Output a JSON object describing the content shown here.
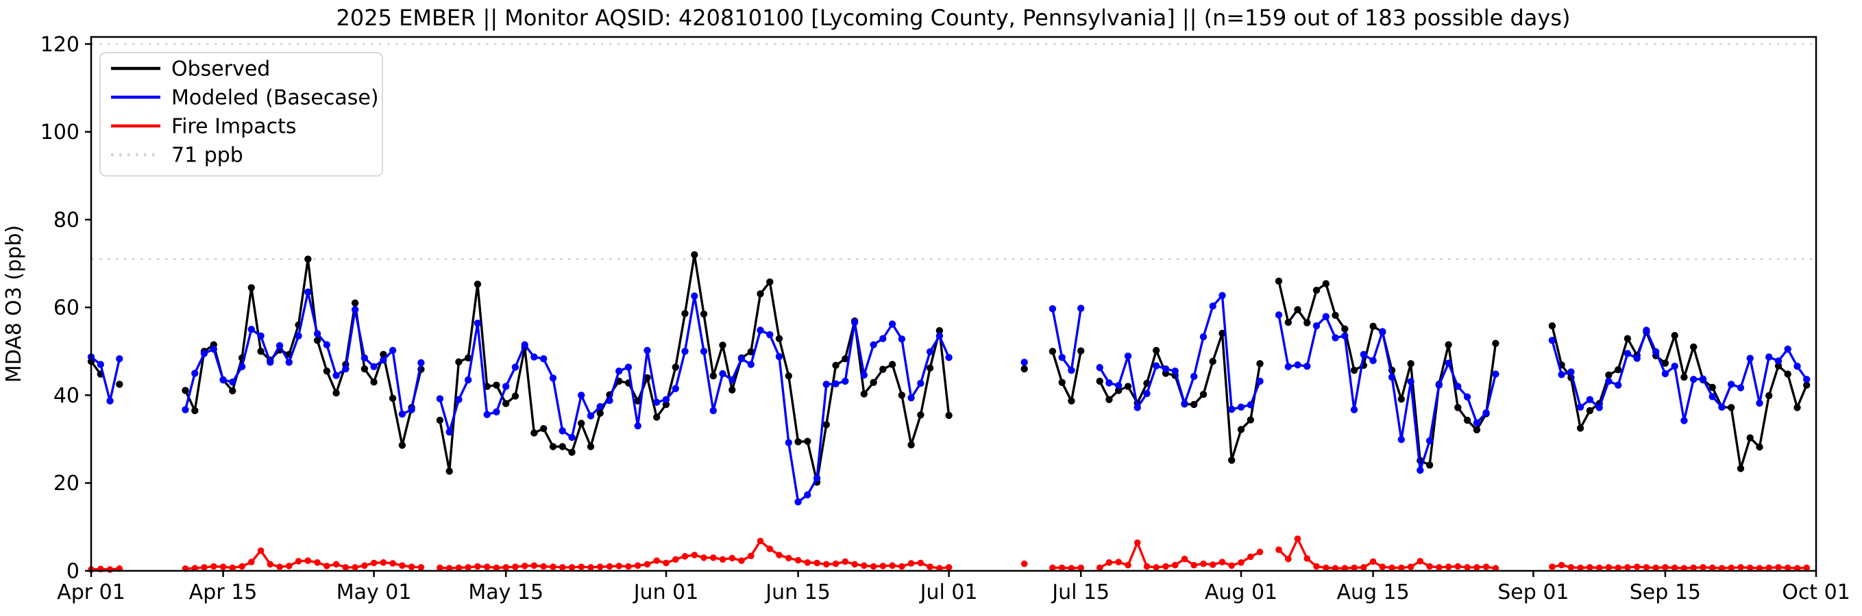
{
  "chart_data": {
    "type": "line",
    "title": "2025 EMBER || Monitor AQSID: 420810100 [Lycoming County, Pennsylvania] || (n=159 out of 183 possible days)",
    "xlabel": "",
    "ylabel": "MDA8 O3 (ppb)",
    "ylim": [
      0,
      120
    ],
    "y_ticks": [
      0,
      20,
      40,
      60,
      80,
      100,
      120
    ],
    "x_days": 183,
    "x_tick_labels": [
      {
        "day": 0,
        "label": "Apr 01"
      },
      {
        "day": 14,
        "label": "Apr 15"
      },
      {
        "day": 30,
        "label": "May 01"
      },
      {
        "day": 44,
        "label": "May 15"
      },
      {
        "day": 61,
        "label": "Jun 01"
      },
      {
        "day": 75,
        "label": "Jun 15"
      },
      {
        "day": 91,
        "label": "Jul 01"
      },
      {
        "day": 105,
        "label": "Jul 15"
      },
      {
        "day": 122,
        "label": "Aug 01"
      },
      {
        "day": 136,
        "label": "Aug 15"
      },
      {
        "day": 153,
        "label": "Sep 01"
      },
      {
        "day": 167,
        "label": "Sep 15"
      },
      {
        "day": 183,
        "label": "Oct 01"
      }
    ],
    "grid": "off",
    "legend_position": "upper left",
    "threshold_lines": [
      {
        "value": 71,
        "label": "71 ppb",
        "color": "#d3d3d3",
        "style": "dotted"
      },
      {
        "value": 120,
        "label": "",
        "color": "#d3d3d3",
        "style": "dotted"
      }
    ],
    "legend": {
      "items": [
        {
          "label": "Observed",
          "color": "#000000",
          "style": "solid"
        },
        {
          "label": "Modeled (Basecase)",
          "color": "#0000ff",
          "style": "solid"
        },
        {
          "label": "Fire Impacts",
          "color": "#ff0000",
          "style": "solid"
        },
        {
          "label": "71 ppb",
          "color": "#d3d3d3",
          "style": "dotted"
        }
      ]
    },
    "series": [
      {
        "id": "observed",
        "name": "Observed",
        "color": "#000000",
        "marker_r": 5.2,
        "values": [
          47.7,
          44.8,
          null,
          42.5,
          null,
          null,
          null,
          null,
          null,
          null,
          41.1,
          36.5,
          50,
          51.5,
          43.5,
          41,
          48.5,
          64.5,
          50,
          48,
          50.3,
          49.3,
          56,
          71,
          52.5,
          45.5,
          40.5,
          47,
          61,
          46,
          43,
          49.3,
          39.3,
          28.6,
          37.2,
          45.9,
          null,
          34.3,
          22.7,
          47.6,
          48.5,
          65.3,
          42,
          42.3,
          38.1,
          39.8,
          50.9,
          31.4,
          32.4,
          28.3,
          28.3,
          27,
          33.6,
          28.3,
          35.9,
          40.1,
          43.2,
          42.8,
          38.7,
          44,
          35,
          37.9,
          46.4,
          58.6,
          72,
          58.5,
          44.4,
          51.4,
          41.2,
          48.5,
          49.9,
          63.1,
          65.8,
          52.9,
          44.4,
          29.4,
          29.5,
          20.2,
          33.3,
          46.8,
          48.3,
          56.9,
          40.3,
          42.9,
          45.9,
          47,
          40,
          28.7,
          35.5,
          46.2,
          54.7,
          35.4,
          null,
          null,
          null,
          null,
          null,
          null,
          null,
          46,
          null,
          null,
          50,
          42.9,
          38.7,
          50.1,
          null,
          43.2,
          39,
          41.1,
          42,
          38.2,
          42.7,
          50.2,
          45,
          44.5,
          38,
          37.9,
          40.2,
          47.7,
          54.1,
          25.2,
          32.2,
          34.4,
          47.2,
          null,
          66,
          56.6,
          59.5,
          56.5,
          63.9,
          65.4,
          58.2,
          55.1,
          45.7,
          46.8,
          55.7,
          54.4,
          45.7,
          39.1,
          47.2,
          25.1,
          24.1,
          42.5,
          51.5,
          37.2,
          34.3,
          32.1,
          35.8,
          51.8,
          null,
          null,
          null,
          null,
          null,
          55.8,
          46.9,
          44,
          32.5,
          36.5,
          38.1,
          44.6,
          45.8,
          52.9,
          49.1,
          54.4,
          49,
          47.3,
          53.6,
          44.1,
          51,
          43.5,
          41.8,
          37.3,
          37.2,
          23.3,
          30.3,
          28.2,
          39.9,
          46.7,
          44.8,
          37.2,
          42.3
        ]
      },
      {
        "id": "modeled",
        "name": "Modeled (Basecase)",
        "color": "#0000ff",
        "marker_r": 5.2,
        "values": [
          48.7,
          47,
          38.7,
          48.3,
          null,
          null,
          null,
          null,
          null,
          null,
          36.7,
          45,
          49.5,
          50.5,
          43.5,
          43,
          46.5,
          55,
          53.5,
          47.5,
          51.3,
          47.5,
          53.5,
          63.5,
          54,
          51.5,
          44.5,
          46,
          59.5,
          48.5,
          46.5,
          48,
          50.2,
          35.7,
          36.7,
          47.4,
          null,
          39.2,
          31.6,
          39,
          43.5,
          56.4,
          35.6,
          36.2,
          42,
          46.4,
          51.5,
          48.7,
          48.3,
          43.9,
          31.9,
          30.4,
          40,
          35.3,
          37.4,
          38.8,
          45.5,
          46.4,
          33,
          50.2,
          38.4,
          39,
          41.5,
          50,
          62.6,
          50,
          36.5,
          44.9,
          43.5,
          48.3,
          47,
          54.8,
          53.8,
          48.8,
          29.2,
          15.7,
          17.3,
          21.1,
          42.5,
          42.6,
          43.2,
          56.6,
          44.6,
          51.5,
          52.9,
          56.2,
          52.8,
          39.4,
          42.7,
          49.9,
          53.5,
          48.6,
          null,
          null,
          null,
          null,
          null,
          null,
          null,
          47.5,
          null,
          null,
          59.7,
          48.6,
          45.7,
          59.8,
          null,
          46.3,
          42.8,
          42.2,
          48.9,
          37.2,
          40.4,
          46.7,
          46,
          45.5,
          38.1,
          44.3,
          53.3,
          60.3,
          62.7,
          36.8,
          37.3,
          37.8,
          43.2,
          null,
          58.3,
          46.5,
          46.9,
          46.6,
          55.8,
          57.9,
          53.1,
          53.5,
          36.7,
          49.3,
          47.9,
          54.5,
          44.1,
          29.9,
          43.1,
          22.9,
          29.6,
          42.3,
          47.3,
          42,
          39.6,
          33.7,
          36,
          44.8,
          null,
          null,
          null,
          null,
          null,
          52.5,
          44.7,
          45.3,
          37.3,
          39,
          37.2,
          43.2,
          42.3,
          49.5,
          48.4,
          54.8,
          49.9,
          44.9,
          46.6,
          34.2,
          43.6,
          43.7,
          39.7,
          37.3,
          42.5,
          41.7,
          48.4,
          38.2,
          48.7,
          47.8,
          50.5,
          46.6,
          43.6
        ]
      },
      {
        "id": "fire",
        "name": "Fire Impacts",
        "color": "#ff0000",
        "marker_r": 4.8,
        "values": [
          0.3,
          0.4,
          0.3,
          0.5,
          null,
          null,
          null,
          null,
          null,
          null,
          0.5,
          0.6,
          0.8,
          1,
          0.9,
          0.7,
          1,
          2,
          4.6,
          1.5,
          0.9,
          1.1,
          2.2,
          2.3,
          1.9,
          1.1,
          1.5,
          0.8,
          0.8,
          1.2,
          1.8,
          1.9,
          1.7,
          1.2,
          0.9,
          0.8,
          null,
          0.7,
          0.6,
          0.7,
          0.8,
          1,
          0.9,
          0.7,
          0.8,
          0.9,
          1.1,
          1.2,
          1,
          0.9,
          0.8,
          0.8,
          0.9,
          0.8,
          0.9,
          1,
          1.1,
          1,
          1.2,
          1.5,
          2.3,
          1.8,
          2.6,
          3.3,
          3.6,
          3,
          3,
          2.6,
          2.9,
          2.3,
          3.4,
          6.8,
          5,
          3.6,
          2.9,
          2.4,
          1.9,
          1.8,
          1.5,
          1.6,
          2.1,
          1.5,
          1.2,
          1,
          1.1,
          1.2,
          1,
          1.7,
          1.8,
          0.9,
          0.6,
          0.8,
          null,
          null,
          null,
          null,
          null,
          null,
          null,
          1.6,
          null,
          null,
          0.7,
          0.7,
          0.6,
          0.7,
          null,
          0.7,
          1.9,
          2,
          1.3,
          6.4,
          1,
          0.8,
          1,
          1.3,
          2.7,
          1.3,
          1.6,
          1.4,
          2,
          1.2,
          1.9,
          3.2,
          4.3,
          null,
          4.8,
          2.7,
          7.3,
          2.8,
          1,
          0.7,
          0.6,
          0.6,
          0.7,
          0.8,
          2.1,
          0.9,
          0.7,
          0.7,
          0.9,
          2.2,
          1,
          0.8,
          0.9,
          1,
          0.8,
          0.8,
          0.9,
          0.6,
          null,
          null,
          null,
          null,
          null,
          0.9,
          1.3,
          0.8,
          0.7,
          0.8,
          0.7,
          0.8,
          0.7,
          0.8,
          0.9,
          0.8,
          0.7,
          0.8,
          0.7,
          0.6,
          0.7,
          0.8,
          0.7,
          0.6,
          0.7,
          0.8,
          0.7,
          0.6,
          0.7,
          0.8,
          0.7,
          0.6,
          0.7
        ]
      }
    ]
  }
}
